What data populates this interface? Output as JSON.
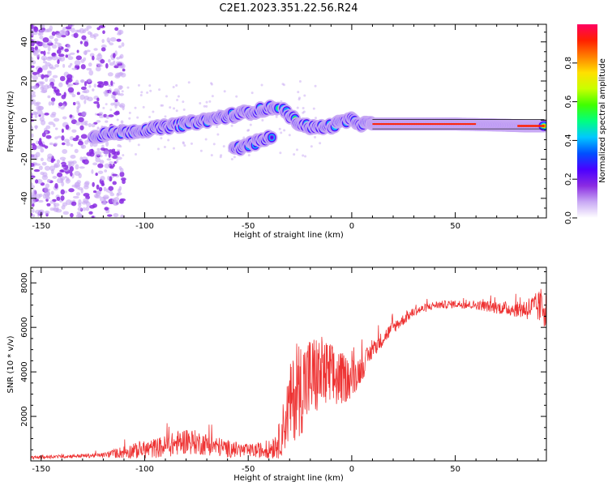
{
  "title": "C2E1.2023.351.22.56.R24",
  "chart_data": [
    {
      "type": "heatmap",
      "name": "spectrogram",
      "xlabel": "Height of straight line (km)",
      "ylabel": "Frequency (Hz)",
      "xlim": [
        -155,
        94
      ],
      "ylim": [
        -50,
        49
      ],
      "xticks": [
        -150,
        -100,
        -50,
        0,
        50
      ],
      "yticks": [
        -40,
        -20,
        0,
        20,
        40
      ],
      "colorbar": {
        "label": "Normalized spectral amplitude",
        "range": [
          0,
          1
        ],
        "ticks": [
          0.0,
          0.2,
          0.4,
          0.6,
          0.8
        ],
        "colors": [
          "#ffffff",
          "#c8a8f4",
          "#8a2be2",
          "#4b00ff",
          "#0050ff",
          "#00c8ff",
          "#00ff80",
          "#40ff00",
          "#c8ff00",
          "#ffe000",
          "#ff8000",
          "#ff2000",
          "#ff0060"
        ]
      },
      "ridges": [
        {
          "name": "upper branch",
          "x": [
            -125,
            -100,
            -80,
            -60,
            -45,
            -35
          ],
          "y": [
            -8,
            -5,
            -2,
            2,
            5,
            7
          ],
          "intensity": 0.55
        },
        {
          "name": "lower branch",
          "x": [
            -57,
            -45,
            -38
          ],
          "y": [
            -15,
            -11,
            -8
          ],
          "intensity": 0.4
        },
        {
          "name": "transition",
          "x": [
            -33,
            -25,
            -18,
            -10,
            -5,
            0,
            5,
            10
          ],
          "y": [
            5,
            -2,
            -4,
            -3,
            -1,
            0,
            -2,
            -2
          ],
          "intensity": 0.6
        },
        {
          "name": "main echo",
          "x": [
            10,
            30,
            50,
            70,
            85,
            93
          ],
          "y": [
            -2,
            -2,
            -2,
            -2.5,
            -3,
            -3
          ],
          "intensity": 0.85
        }
      ]
    },
    {
      "type": "line",
      "name": "snr",
      "xlabel": "Height of straight line (km)",
      "ylabel": "SNR (10 * v/v)",
      "xlim": [
        -155,
        94
      ],
      "ylim": [
        0,
        8700
      ],
      "xticks": [
        -150,
        -100,
        -50,
        0,
        50
      ],
      "yticks": [
        2000,
        4000,
        6000,
        8000
      ],
      "color": "#ee3333",
      "x": [
        -155,
        -140,
        -120,
        -110,
        -100,
        -90,
        -80,
        -70,
        -60,
        -50,
        -40,
        -35,
        -30,
        -25,
        -20,
        -15,
        -10,
        -5,
        0,
        5,
        10,
        20,
        30,
        40,
        50,
        60,
        70,
        80,
        90,
        94
      ],
      "y": [
        150,
        200,
        260,
        400,
        500,
        650,
        900,
        750,
        550,
        450,
        500,
        900,
        2500,
        3300,
        3700,
        3900,
        3700,
        3700,
        3700,
        4200,
        5000,
        6000,
        6700,
        7000,
        7050,
        7000,
        6900,
        6800,
        6900,
        7000
      ],
      "noise_amplitude": [
        60,
        80,
        100,
        300,
        400,
        500,
        600,
        500,
        400,
        300,
        400,
        800,
        1800,
        2200,
        2000,
        1800,
        1600,
        1200,
        900,
        600,
        400,
        300,
        200,
        180,
        180,
        200,
        280,
        350,
        700,
        1200
      ]
    }
  ]
}
